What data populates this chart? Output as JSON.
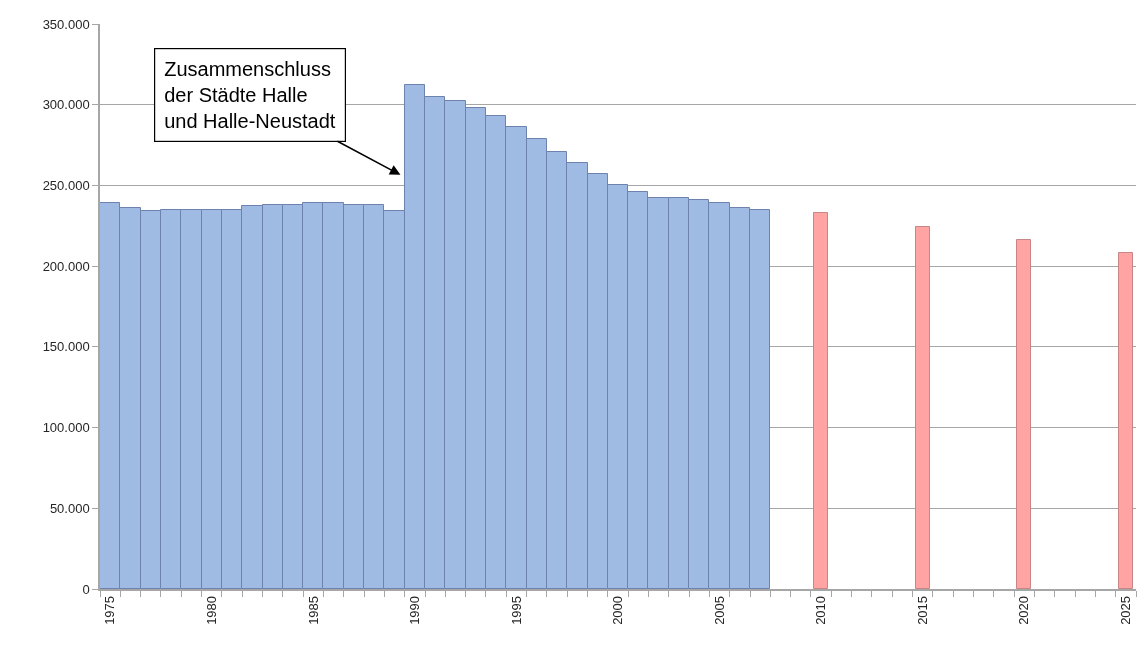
{
  "chart_data": {
    "type": "bar",
    "categories": [
      "1975",
      null,
      null,
      null,
      null,
      "1980",
      null,
      null,
      null,
      null,
      "1985",
      null,
      null,
      null,
      null,
      "1990",
      null,
      null,
      null,
      null,
      "1995",
      null,
      null,
      null,
      null,
      "2000",
      null,
      null,
      null,
      null,
      "2005",
      null,
      null,
      null,
      null,
      "2010",
      null,
      null,
      null,
      null,
      "2015",
      null,
      null,
      null,
      null,
      "2020",
      null,
      null,
      null,
      null,
      "2025"
    ],
    "series": [
      {
        "color": "#9fbbe4",
        "values": [
          239000,
          236000,
          234000,
          235000,
          235000,
          235000,
          235000,
          237000,
          238000,
          238000,
          239000,
          239000,
          238000,
          238000,
          234000,
          312000,
          305000,
          302000,
          298000,
          293000,
          286000,
          279000,
          271000,
          264000,
          257000,
          250000,
          246000,
          242000,
          242000,
          241000,
          239000,
          236000,
          235000,
          null,
          null,
          null,
          null,
          null,
          null,
          null,
          null,
          null,
          null,
          null,
          null,
          null,
          null,
          null,
          null,
          null,
          null
        ]
      },
      {
        "color": "#ffa3a3",
        "values": [
          null,
          null,
          null,
          null,
          null,
          null,
          null,
          null,
          null,
          null,
          null,
          null,
          null,
          null,
          null,
          null,
          null,
          null,
          null,
          null,
          null,
          null,
          null,
          null,
          null,
          null,
          null,
          null,
          null,
          null,
          null,
          null,
          null,
          null,
          null,
          233000,
          null,
          null,
          null,
          null,
          224000,
          null,
          null,
          null,
          null,
          216000,
          null,
          null,
          null,
          null,
          208000
        ]
      }
    ],
    "ylim": [
      0,
      350000
    ],
    "yticks": [
      0,
      {
        "value": 50000,
        "label": "50.000"
      },
      {
        "value": 100000,
        "label": "100.000"
      },
      {
        "value": 150000,
        "label": "150.000"
      },
      {
        "value": 200000,
        "label": "200.000"
      },
      {
        "value": 250000,
        "label": "250.000"
      },
      {
        "value": 300000,
        "label": "300.000"
      },
      {
        "value": 350000,
        "label": "350.000"
      }
    ],
    "grid": "y",
    "annotations": [
      "Zusammenschluss\nder Städte Halle\nund Halle-Neustadt"
    ]
  }
}
